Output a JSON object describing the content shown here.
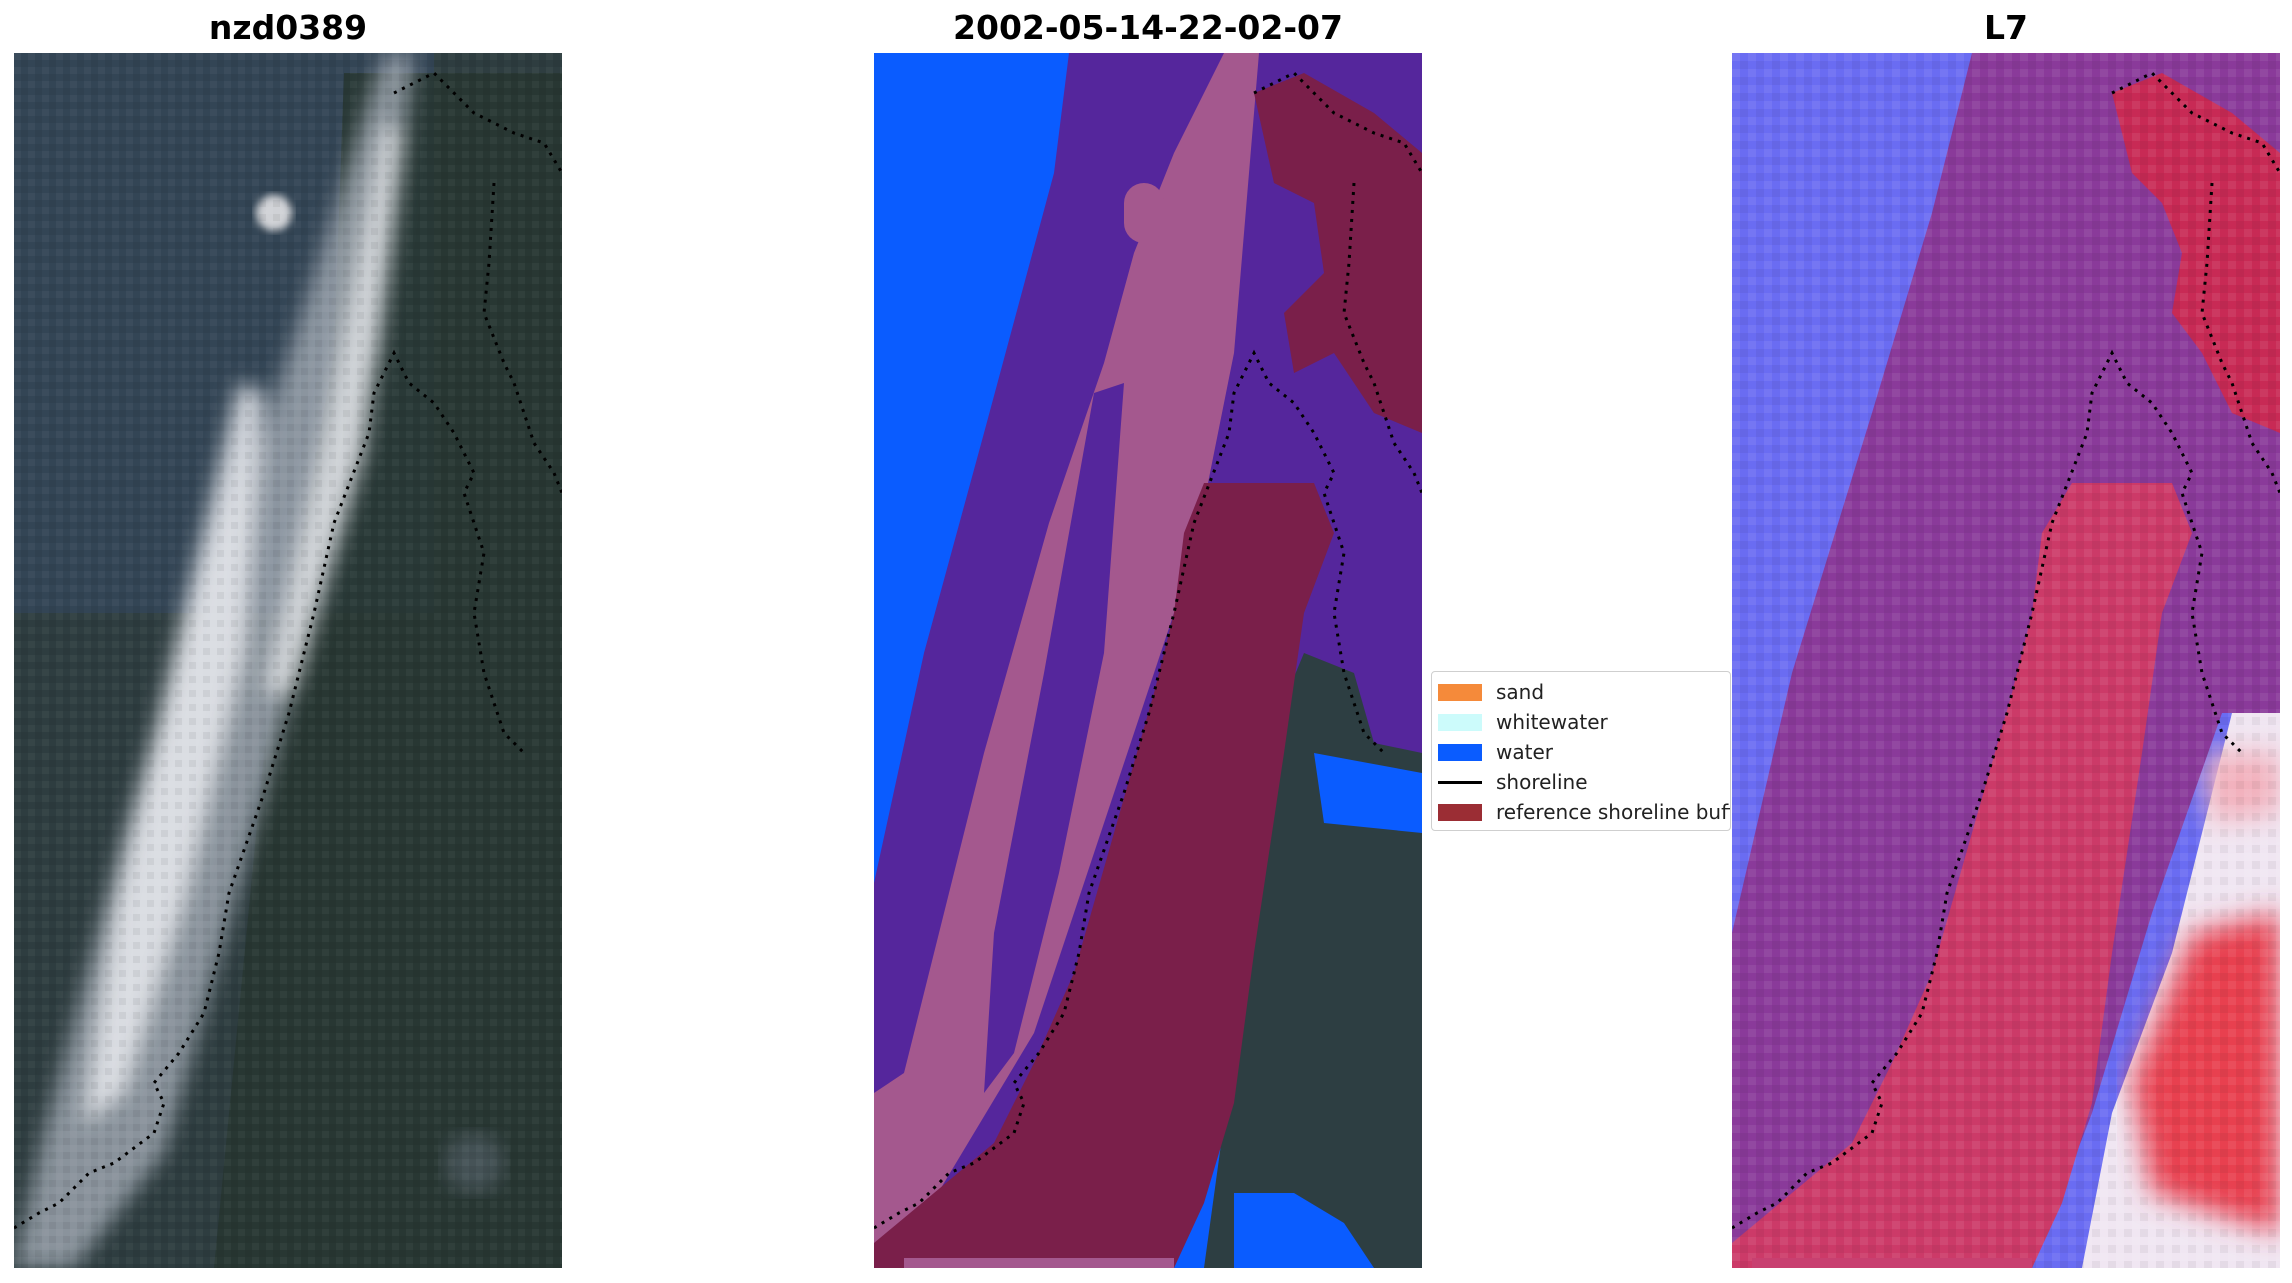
{
  "panels": [
    {
      "title": "nzd0389"
    },
    {
      "title": "2002-05-14-22-02-07"
    },
    {
      "title": "L7"
    }
  ],
  "legend": {
    "items": [
      {
        "label": "sand",
        "color": "#f58a3a",
        "kind": "patch"
      },
      {
        "label": "whitewater",
        "color": "#ccfbfb",
        "kind": "patch"
      },
      {
        "label": "water",
        "color": "#0a5cff",
        "kind": "patch"
      },
      {
        "label": "shoreline",
        "color": "#000000",
        "kind": "line"
      },
      {
        "label": "reference shoreline buffer",
        "color": "#9b2d34",
        "kind": "patch"
      }
    ]
  },
  "colors": {
    "rgb_forest": "#2b3a3c",
    "rgb_water": "#34465a",
    "rgb_sand": "#c8cbd0",
    "class_water": "#0a5cff",
    "class_sand_overlay": "#a4588e",
    "class_dark_purple": "#55269c",
    "class_buffer": "#7a1f4a",
    "index_blue": "#5a5cf0",
    "index_purple": "#8a3a9a",
    "index_red": "#d02848"
  }
}
